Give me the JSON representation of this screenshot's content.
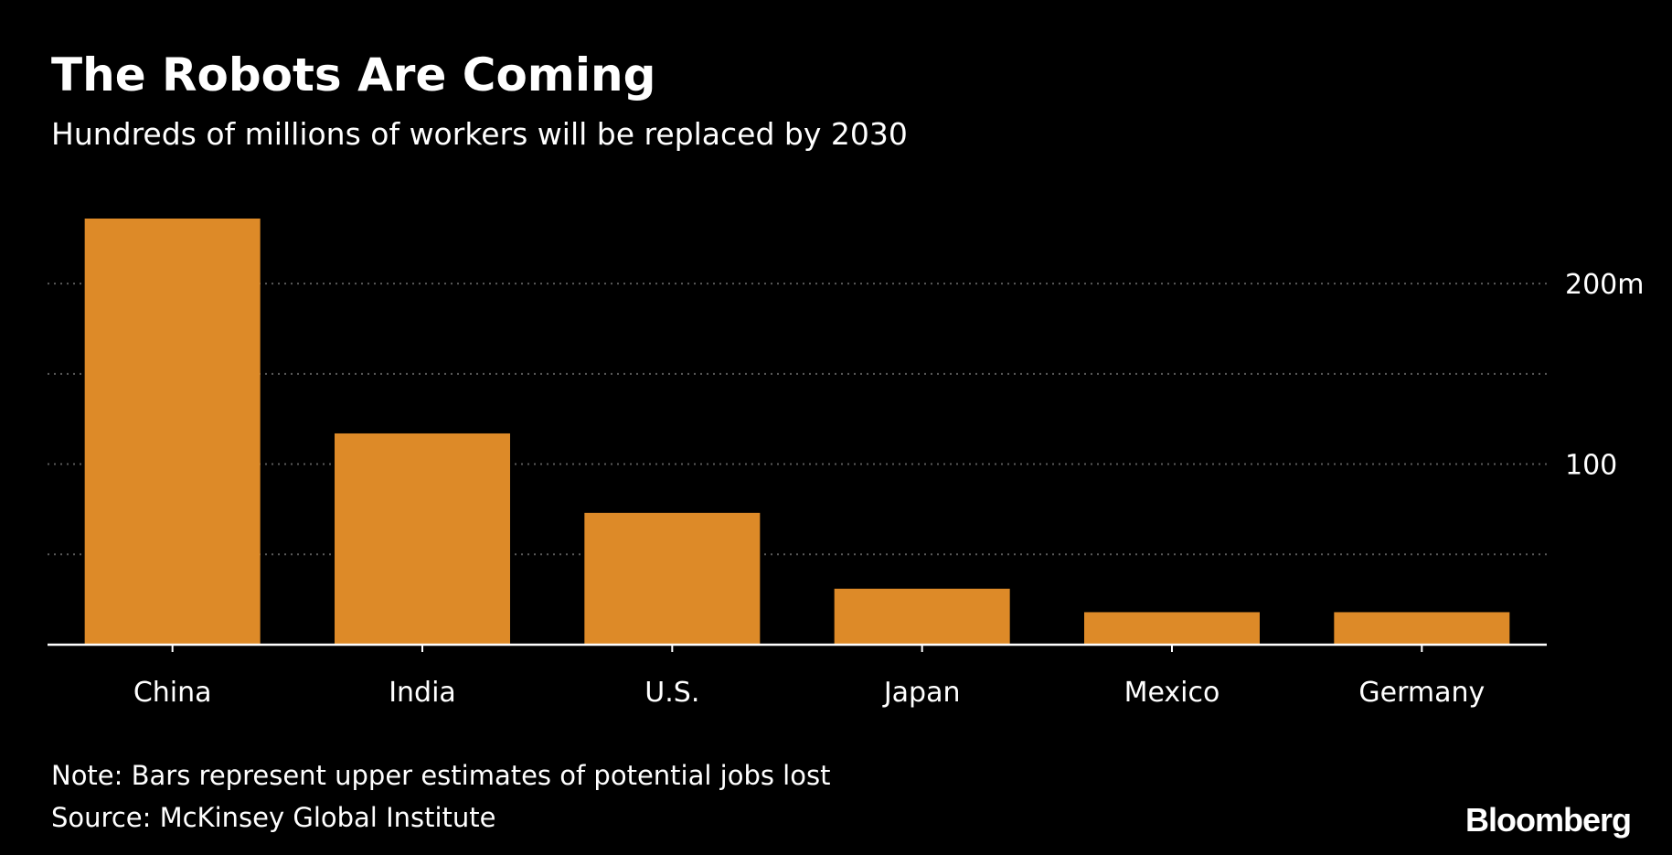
{
  "header": {
    "title": "The Robots Are Coming",
    "subtitle": "Hundreds of millions of workers will be replaced by 2030"
  },
  "footer": {
    "note": "Note: Bars represent upper estimates of potential jobs lost",
    "source": "Source: McKinsey Global Institute",
    "brand": "Bloomberg"
  },
  "colors": {
    "background": "#000000",
    "bar": "#dd8a28",
    "gridline": "#5a5a5a",
    "axis": "#ffffff",
    "text": "#ffffff"
  },
  "chart_data": {
    "type": "bar",
    "title": "The Robots Are Coming",
    "subtitle": "Hundreds of millions of workers will be replaced by 2030",
    "categories": [
      "China",
      "India",
      "U.S.",
      "Japan",
      "Mexico",
      "Germany"
    ],
    "values": [
      236,
      117,
      73,
      31,
      18,
      18
    ],
    "unit": "m",
    "ylim": [
      0,
      236
    ],
    "yticks": [
      {
        "value": 100,
        "label": "100"
      },
      {
        "value": 200,
        "label": "200m"
      }
    ],
    "gridlines": [
      50,
      100,
      150,
      200
    ],
    "grid": true,
    "axis_side": "right",
    "legend": "none"
  }
}
